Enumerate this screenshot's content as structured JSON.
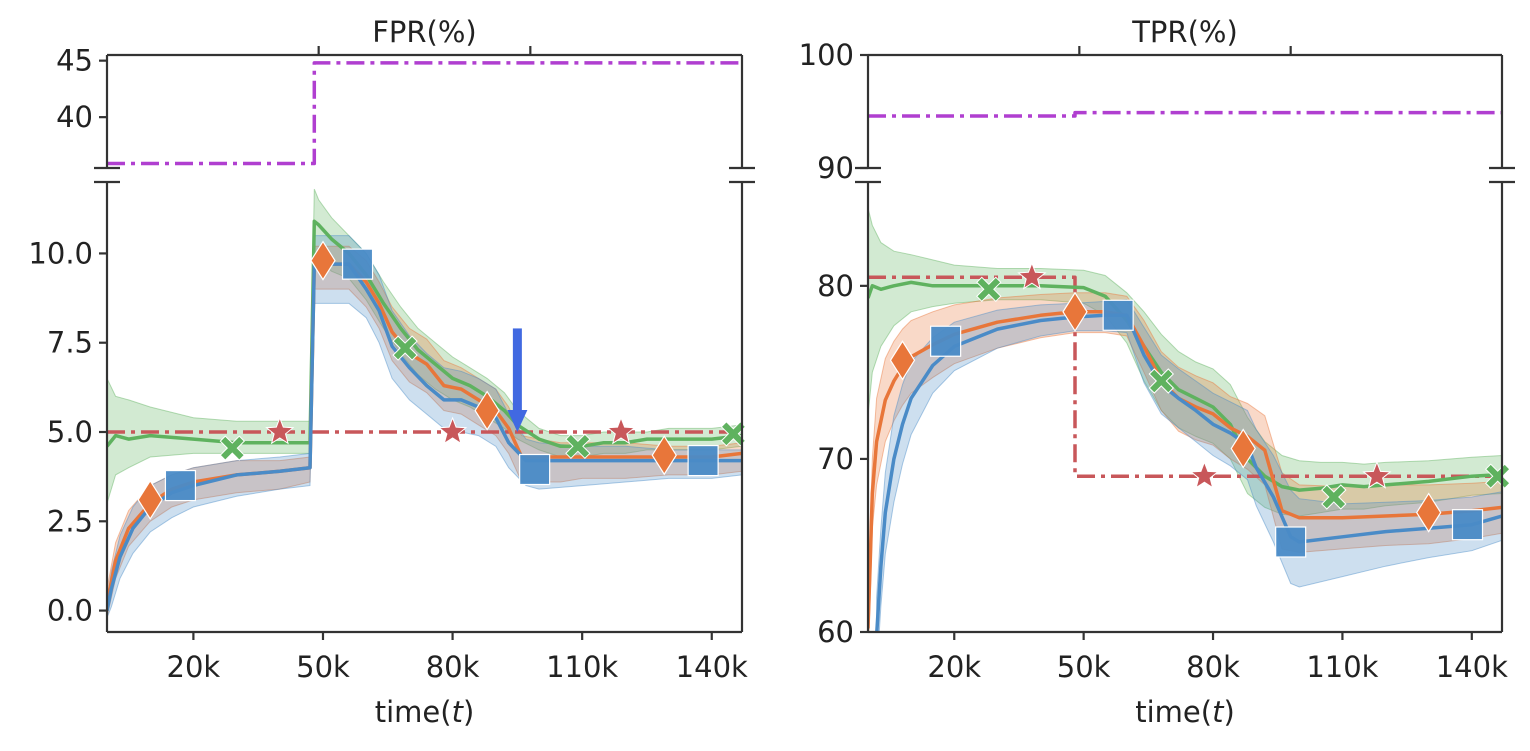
{
  "chart_data": [
    {
      "type": "line",
      "title": "FPR(%)",
      "xlabel": "time(t)",
      "xlabel_text": "time(",
      "xlabel_italic": "t",
      "xlabel_close": ")",
      "xlim": [
        0,
        147
      ],
      "x_ticks": [
        20,
        50,
        80,
        110,
        140
      ],
      "x_tick_labels": [
        "20k",
        "50k",
        "80k",
        "110k",
        "140k"
      ],
      "upper_ylim": [
        35.5,
        45.5
      ],
      "upper_y_ticks": [
        40,
        45
      ],
      "upper_y_tick_labels": [
        "40",
        "45"
      ],
      "lower_ylim": [
        -0.6,
        12.0
      ],
      "lower_y_ticks": [
        0,
        2.5,
        5,
        7.5,
        10
      ],
      "lower_y_tick_labels": [
        "0.0",
        "2.5",
        "5.0",
        "7.5",
        "10.0"
      ],
      "annotation": {
        "type": "arrow",
        "x": 95,
        "y_from": 7.9,
        "y_to": 5.0,
        "color": "#4169e1"
      },
      "series": [
        {
          "name": "purple",
          "color": "#b03fd0",
          "dash": "dashdot",
          "panel": "upper",
          "x": [
            0,
            48,
            48,
            147
          ],
          "y": [
            35.9,
            35.9,
            44.8,
            44.8
          ]
        },
        {
          "name": "red",
          "color": "#c8575a",
          "dash": "dashdot",
          "marker": "star",
          "panel": "lower",
          "x": [
            0,
            147
          ],
          "y": [
            5.0,
            5.0
          ],
          "markers": [
            [
              40,
              5.0
            ],
            [
              80,
              5.0
            ],
            [
              119,
              5.0
            ]
          ]
        },
        {
          "name": "green",
          "color": "#5fb25f",
          "marker": "x",
          "panel": "lower",
          "x": [
            0,
            2,
            5,
            10,
            20,
            30,
            40,
            47,
            48,
            49,
            52,
            56,
            60,
            64,
            68,
            72,
            76,
            80,
            84,
            88,
            92,
            95,
            100,
            105,
            110,
            115,
            120,
            125,
            130,
            135,
            140,
            147
          ],
          "y": [
            4.6,
            4.9,
            4.8,
            4.9,
            4.8,
            4.7,
            4.7,
            4.7,
            10.9,
            10.8,
            10.4,
            10.0,
            9.4,
            8.6,
            7.9,
            7.3,
            6.9,
            6.5,
            6.3,
            6.0,
            5.6,
            5.2,
            4.8,
            4.6,
            4.6,
            4.7,
            4.7,
            4.8,
            4.8,
            4.8,
            4.8,
            4.9
          ],
          "band_upper": [
            6.5,
            6.0,
            5.9,
            5.7,
            5.4,
            5.3,
            5.3,
            5.3,
            11.8,
            11.5,
            11.0,
            10.5,
            10.0,
            9.2,
            8.5,
            7.9,
            7.5,
            7.1,
            6.8,
            6.5,
            6.1,
            5.6,
            5.1,
            4.9,
            4.9,
            5.0,
            5.0,
            5.0,
            5.1,
            5.1,
            5.1,
            5.2
          ],
          "band_lower": [
            3.0,
            3.8,
            4.0,
            4.3,
            4.4,
            4.4,
            4.4,
            4.4,
            9.9,
            9.8,
            9.5,
            9.3,
            8.7,
            7.9,
            7.2,
            6.6,
            6.2,
            5.9,
            5.7,
            5.4,
            5.1,
            4.8,
            4.5,
            4.3,
            4.3,
            4.4,
            4.4,
            4.5,
            4.5,
            4.5,
            4.5,
            4.6
          ],
          "markers": [
            [
              29,
              4.55
            ],
            [
              69,
              7.35
            ],
            [
              109,
              4.6
            ],
            [
              145,
              4.95
            ]
          ]
        },
        {
          "name": "orange",
          "color": "#e8763a",
          "marker": "diamond",
          "panel": "lower",
          "x": [
            0,
            2,
            5,
            10,
            15,
            20,
            30,
            40,
            47,
            48,
            52,
            56,
            60,
            63,
            66,
            70,
            74,
            78,
            82,
            86,
            90,
            93,
            96,
            100,
            105,
            110,
            120,
            130,
            140,
            147
          ],
          "y": [
            0.2,
            1.4,
            2.3,
            3.0,
            3.4,
            3.6,
            3.8,
            3.9,
            4.0,
            9.7,
            9.7,
            9.7,
            9.2,
            8.6,
            7.8,
            7.2,
            6.9,
            6.3,
            6.2,
            5.9,
            5.6,
            5.1,
            4.3,
            4.3,
            4.3,
            4.3,
            4.3,
            4.3,
            4.3,
            4.4
          ],
          "band_upper": [
            0.6,
            1.9,
            2.8,
            3.5,
            3.8,
            4.0,
            4.2,
            4.2,
            4.3,
            10.2,
            10.2,
            10.2,
            9.8,
            9.2,
            8.5,
            7.9,
            7.6,
            7.0,
            6.8,
            6.5,
            6.2,
            5.7,
            4.9,
            4.8,
            4.7,
            4.7,
            4.7,
            4.6,
            4.6,
            4.7
          ],
          "band_lower": [
            -0.2,
            0.9,
            1.8,
            2.5,
            2.9,
            3.1,
            3.3,
            3.4,
            3.6,
            9.0,
            9.0,
            9.0,
            8.5,
            7.9,
            7.0,
            6.4,
            6.1,
            5.6,
            5.5,
            5.2,
            4.9,
            4.4,
            3.6,
            3.6,
            3.6,
            3.7,
            3.7,
            3.8,
            3.8,
            3.9
          ],
          "markers": [
            [
              10,
              3.1
            ],
            [
              50,
              9.8
            ],
            [
              88,
              5.6
            ],
            [
              129,
              4.35
            ]
          ]
        },
        {
          "name": "blue",
          "color": "#4a8bc7",
          "marker": "square",
          "panel": "lower",
          "x": [
            0,
            1,
            3,
            6,
            10,
            15,
            20,
            30,
            40,
            47,
            48,
            52,
            56,
            60,
            63,
            66,
            70,
            74,
            78,
            82,
            86,
            90,
            93,
            97,
            100,
            110,
            120,
            130,
            140,
            147
          ],
          "y": [
            0,
            0.6,
            1.5,
            2.3,
            2.9,
            3.3,
            3.5,
            3.8,
            3.9,
            4.0,
            9.7,
            9.7,
            9.7,
            9.0,
            8.4,
            7.4,
            6.8,
            6.3,
            5.9,
            5.9,
            5.7,
            5.4,
            4.7,
            4.2,
            4.2,
            4.2,
            4.2,
            4.2,
            4.2,
            4.2
          ],
          "band_upper": [
            0.3,
            1.1,
            2.1,
            2.9,
            3.5,
            3.8,
            4.0,
            4.2,
            4.3,
            4.4,
            10.5,
            10.5,
            10.5,
            10.0,
            9.4,
            8.4,
            7.7,
            7.2,
            6.8,
            6.7,
            6.5,
            6.2,
            5.5,
            4.8,
            4.7,
            4.6,
            4.6,
            4.5,
            4.5,
            4.5
          ],
          "band_lower": [
            -0.2,
            0.1,
            0.9,
            1.6,
            2.2,
            2.6,
            2.9,
            3.2,
            3.4,
            3.5,
            8.6,
            8.6,
            8.6,
            8.2,
            7.5,
            6.5,
            5.9,
            5.5,
            5.1,
            5.0,
            4.9,
            4.6,
            4.0,
            3.5,
            3.4,
            3.5,
            3.6,
            3.7,
            3.7,
            3.8
          ],
          "markers": [
            [
              17,
              3.5
            ],
            [
              58,
              9.7
            ],
            [
              99,
              3.95
            ],
            [
              138,
              4.2
            ]
          ]
        }
      ]
    },
    {
      "type": "line",
      "title": "TPR(%)",
      "xlabel": "time(t)",
      "xlabel_text": "time(",
      "xlabel_italic": "t",
      "xlabel_close": ")",
      "xlim": [
        0,
        147
      ],
      "x_ticks": [
        20,
        50,
        80,
        110,
        140
      ],
      "x_tick_labels": [
        "20k",
        "50k",
        "80k",
        "110k",
        "140k"
      ],
      "upper_ylim": [
        90,
        100
      ],
      "upper_y_ticks": [
        90,
        100
      ],
      "upper_y_tick_labels": [
        "90",
        "100"
      ],
      "lower_ylim": [
        60,
        86
      ],
      "lower_y_ticks": [
        60,
        70,
        80
      ],
      "lower_y_tick_labels": [
        "60",
        "70",
        "80"
      ],
      "series": [
        {
          "name": "purple",
          "color": "#b03fd0",
          "dash": "dashdot",
          "panel": "upper",
          "x": [
            0,
            48,
            48,
            147
          ],
          "y": [
            94.6,
            94.6,
            94.9,
            94.9
          ]
        },
        {
          "name": "red",
          "color": "#c8575a",
          "dash": "dashdot",
          "marker": "star",
          "panel": "lower",
          "x": [
            0,
            48,
            48,
            147
          ],
          "y": [
            80.5,
            80.5,
            69.0,
            69.0
          ],
          "markers": [
            [
              38,
              80.5
            ],
            [
              78,
              69.0
            ],
            [
              118,
              69.0
            ]
          ]
        },
        {
          "name": "green",
          "color": "#5fb25f",
          "marker": "x",
          "panel": "lower",
          "x": [
            0,
            1,
            3,
            6,
            10,
            15,
            20,
            30,
            40,
            50,
            55,
            60,
            64,
            68,
            72,
            76,
            80,
            84,
            88,
            92,
            96,
            100,
            105,
            110,
            115,
            120,
            130,
            140,
            147
          ],
          "y": [
            79.3,
            80.0,
            79.8,
            80.0,
            80.2,
            80.0,
            80.0,
            80.0,
            80.0,
            79.9,
            79.4,
            78.0,
            76.5,
            75.0,
            74.0,
            73.5,
            73.0,
            72.0,
            70.0,
            69.0,
            68.4,
            68.2,
            68.3,
            68.5,
            68.4,
            68.5,
            68.7,
            69.0,
            69.1
          ],
          "band_upper": [
            84.5,
            83.5,
            82.5,
            82.0,
            81.8,
            81.5,
            81.2,
            81.0,
            81.0,
            80.9,
            80.6,
            79.6,
            78.5,
            77.2,
            76.2,
            75.6,
            75.2,
            74.3,
            72.4,
            71.0,
            70.2,
            69.9,
            69.8,
            69.8,
            69.7,
            69.8,
            69.9,
            70.1,
            70.2
          ],
          "band_lower": [
            72.5,
            75.0,
            76.5,
            77.7,
            78.5,
            78.8,
            79.0,
            79.2,
            79.2,
            79.0,
            78.3,
            76.7,
            74.5,
            72.8,
            71.8,
            71.3,
            70.9,
            70.0,
            68.0,
            67.2,
            66.8,
            66.7,
            66.9,
            67.1,
            67.1,
            67.3,
            67.5,
            67.9,
            68.0
          ],
          "markers": [
            [
              28,
              79.8
            ],
            [
              68,
              74.5
            ],
            [
              108,
              67.8
            ],
            [
              146,
              69.0
            ]
          ]
        },
        {
          "name": "orange",
          "color": "#e8763a",
          "marker": "diamond",
          "panel": "lower",
          "x": [
            0,
            0.5,
            1,
            2,
            4,
            6,
            8,
            10,
            15,
            20,
            30,
            40,
            48,
            55,
            60,
            64,
            68,
            72,
            76,
            80,
            84,
            88,
            92,
            96,
            100,
            110,
            120,
            130,
            140,
            147
          ],
          "y": [
            60.2,
            64,
            68,
            71,
            73.4,
            74.5,
            75.3,
            75.9,
            76.6,
            77.2,
            77.9,
            78.3,
            78.5,
            78.5,
            78.3,
            76.5,
            74.5,
            73.5,
            73.0,
            72.6,
            71.8,
            71.3,
            70.5,
            67.0,
            66.6,
            66.6,
            66.7,
            66.8,
            67.0,
            67.2
          ],
          "band_upper": [
            62,
            66,
            70,
            73.5,
            75.8,
            76.8,
            77.5,
            78.0,
            78.5,
            78.9,
            79.3,
            79.5,
            79.6,
            79.6,
            79.4,
            78.0,
            76.2,
            75.3,
            74.8,
            74.4,
            73.6,
            73.2,
            72.5,
            69.2,
            68.5,
            68.4,
            68.5,
            68.5,
            68.6,
            68.7
          ],
          "band_lower": [
            58.5,
            62,
            66,
            68.5,
            71.0,
            72.2,
            73.1,
            73.8,
            74.7,
            75.5,
            76.4,
            77.0,
            77.3,
            77.3,
            77.1,
            75.0,
            72.8,
            71.6,
            71.1,
            70.8,
            70.0,
            69.4,
            68.5,
            64.8,
            64.6,
            64.8,
            65.0,
            65.1,
            65.4,
            65.7
          ],
          "markers": [
            [
              8,
              75.7
            ],
            [
              48,
              78.5
            ],
            [
              87,
              70.6
            ],
            [
              130,
              66.9
            ]
          ]
        },
        {
          "name": "blue",
          "color": "#4a8bc7",
          "marker": "square",
          "panel": "lower",
          "x": [
            2,
            3,
            4,
            6,
            8,
            10,
            15,
            20,
            30,
            40,
            48,
            55,
            60,
            64,
            68,
            72,
            76,
            80,
            84,
            88,
            90,
            94,
            98,
            100,
            110,
            120,
            130,
            140,
            147
          ],
          "y": [
            59.8,
            63.8,
            66.9,
            70.0,
            72.0,
            73.5,
            75.4,
            76.5,
            77.5,
            78.0,
            78.2,
            78.3,
            78.3,
            76.0,
            74.3,
            73.5,
            72.8,
            72.0,
            71.5,
            70.8,
            69.5,
            67.8,
            65.5,
            65.2,
            65.5,
            65.8,
            66.0,
            66.2,
            66.7
          ],
          "band_upper": [
            62,
            66,
            69.2,
            72.5,
            74.3,
            75.6,
            77.0,
            77.9,
            78.6,
            78.9,
            79.0,
            79.1,
            79.2,
            77.6,
            76.0,
            75.2,
            74.5,
            73.8,
            73.3,
            72.8,
            71.7,
            70.2,
            68.2,
            67.7,
            67.4,
            67.5,
            67.6,
            67.8,
            68.1
          ],
          "band_lower": [
            57.5,
            61.5,
            64.5,
            67.5,
            69.7,
            71.4,
            73.8,
            75.1,
            76.4,
            77.1,
            77.4,
            77.4,
            77.3,
            74.4,
            72.6,
            71.8,
            71.0,
            70.2,
            69.6,
            68.8,
            67.3,
            65.2,
            62.8,
            62.6,
            63.2,
            63.8,
            64.3,
            64.7,
            65.3
          ],
          "markers": [
            [
              18,
              76.8
            ],
            [
              58,
              78.3
            ],
            [
              98,
              65.2
            ],
            [
              139,
              66.2
            ]
          ]
        }
      ]
    }
  ]
}
